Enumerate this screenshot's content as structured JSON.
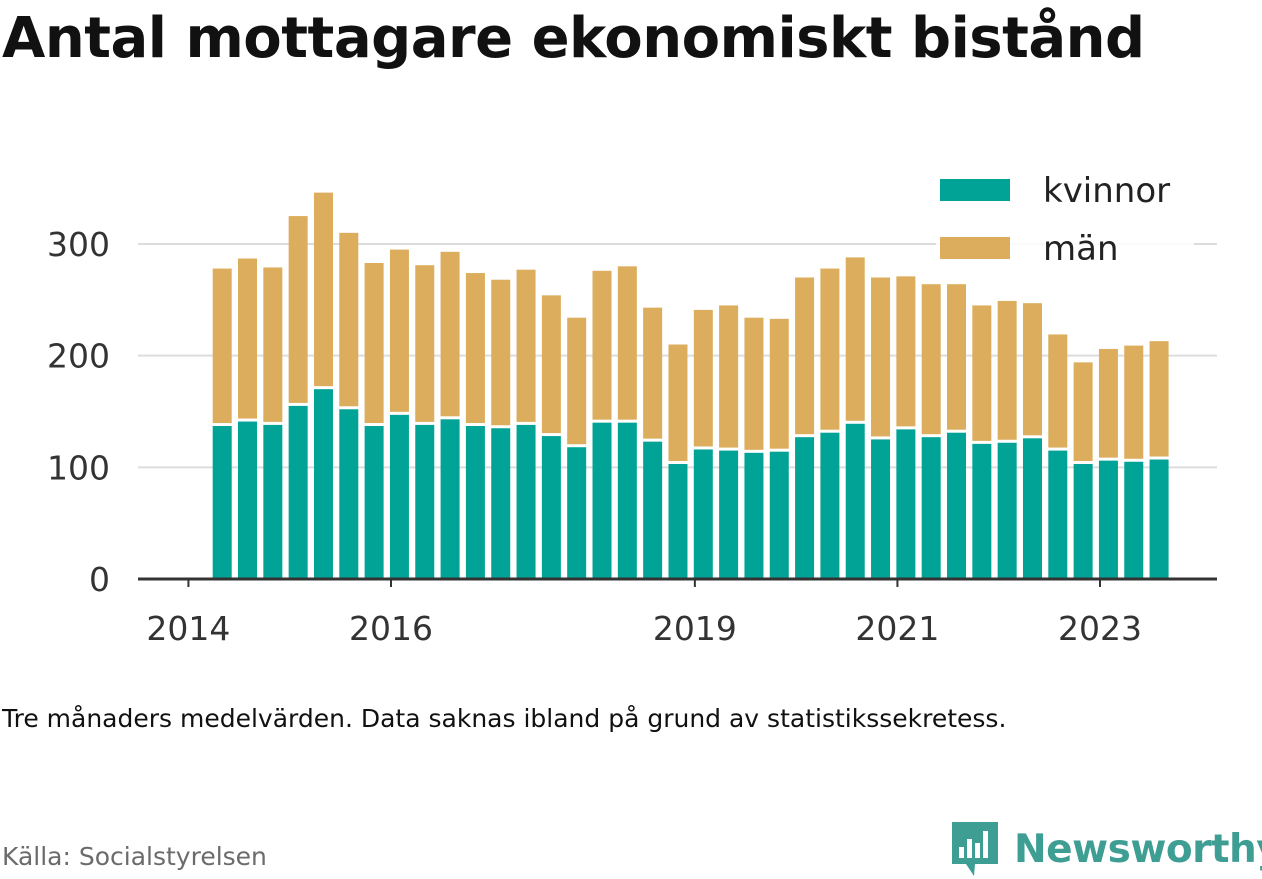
{
  "title": "Antal mottagare ekonomiskt bistånd",
  "note": "Tre månaders medelvärden. Data saknas ibland på grund av statistikssekretess.",
  "source": "Källa: Socialstyrelsen",
  "brand": {
    "name": "Newsworthy",
    "icon": "newsworthy-logo-icon",
    "color": "#3f9e93"
  },
  "colors": {
    "kvinnor": "#00a396",
    "man": "#dbad5c",
    "grid": "#dddddd",
    "axis": "#333333"
  },
  "chart_data": {
    "type": "bar",
    "stacked": true,
    "x_start": "2014-05",
    "step_months": 3,
    "xticks": [
      "2014",
      "2016",
      "2019",
      "2021",
      "2023"
    ],
    "ylim": [
      0,
      350
    ],
    "yticks": [
      0,
      100,
      200,
      300
    ],
    "grid": true,
    "legend": "top-right",
    "series": [
      {
        "name": "kvinnor",
        "values": [
          137,
          141,
          138,
          155,
          170,
          152,
          137,
          147,
          138,
          143,
          137,
          135,
          138,
          128,
          118,
          140,
          140,
          123,
          103,
          116,
          115,
          113,
          114,
          127,
          131,
          139,
          125,
          134,
          127,
          131,
          121,
          122,
          126,
          115,
          103,
          106,
          105,
          107
        ]
      },
      {
        "name": "män",
        "values": [
          141,
          146,
          141,
          170,
          176,
          158,
          146,
          148,
          143,
          150,
          137,
          133,
          139,
          126,
          116,
          136,
          140,
          120,
          107,
          125,
          130,
          121,
          119,
          143,
          147,
          149,
          145,
          137,
          137,
          133,
          124,
          127,
          121,
          104,
          91,
          100,
          104,
          106
        ]
      }
    ]
  }
}
